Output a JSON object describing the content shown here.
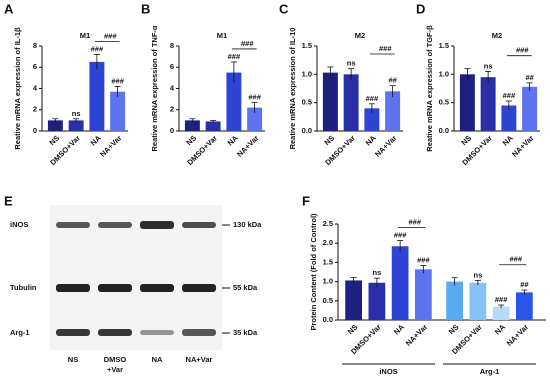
{
  "chart_data": [
    {
      "type": "bar",
      "panel": "A",
      "title": "M1",
      "y_label": "Reative mRNA expression of IL-1β",
      "categories": [
        "NS",
        "DMSO+Var",
        "NA",
        "NA+Var"
      ],
      "values": [
        1.0,
        1.0,
        6.5,
        3.7
      ],
      "errors": [
        0.15,
        0.15,
        0.7,
        0.5
      ],
      "colors": [
        "#1f1f80",
        "#2a2fa8",
        "#2d44d4",
        "#5e74ee"
      ],
      "annotations": [
        null,
        "ns",
        "###",
        "###"
      ],
      "bracket_label": "###",
      "ylim": [
        0,
        8
      ],
      "yticks": [
        0,
        2,
        4,
        6,
        8
      ]
    },
    {
      "type": "bar",
      "panel": "B",
      "title": "M1",
      "y_label": "Reative mRNA expression of TNF-α",
      "categories": [
        "NS",
        "DMSO+Var",
        "NA",
        "NA+Var"
      ],
      "values": [
        1.0,
        0.9,
        5.5,
        2.2
      ],
      "errors": [
        0.15,
        0.1,
        1.0,
        0.5
      ],
      "colors": [
        "#1f1f80",
        "#2a2fa8",
        "#2d44d4",
        "#5e74ee"
      ],
      "annotations": [
        null,
        null,
        "###",
        "###"
      ],
      "bracket_label": "###",
      "ylim": [
        0,
        8
      ],
      "yticks": [
        0,
        2,
        4,
        6,
        8
      ]
    },
    {
      "type": "bar",
      "panel": "C",
      "title": "M2",
      "y_label": "Reative mRNA expression of IL-10",
      "categories": [
        "NS",
        "DMSO+Var",
        "NA",
        "NA+Var"
      ],
      "values": [
        1.03,
        1.0,
        0.4,
        0.7
      ],
      "errors": [
        0.1,
        0.1,
        0.08,
        0.1
      ],
      "colors": [
        "#1f1f80",
        "#2a2fa8",
        "#2d44d4",
        "#5e74ee"
      ],
      "annotations": [
        null,
        "ns",
        "###",
        "##"
      ],
      "bracket_label": "###",
      "ylim": [
        0,
        1.5
      ],
      "yticks": [
        {
          "value": 0,
          "label": "0.0"
        },
        0.5,
        {
          "value": 1,
          "label": "1.0"
        },
        1.5
      ]
    },
    {
      "type": "bar",
      "panel": "D",
      "title": "M2",
      "y_label": "Reative mRNA expression of TGF-β",
      "categories": [
        "NS",
        "DMSO+Var",
        "NA",
        "NA+Var"
      ],
      "values": [
        1.0,
        0.95,
        0.45,
        0.78
      ],
      "errors": [
        0.1,
        0.1,
        0.08,
        0.07
      ],
      "colors": [
        "#1f1f80",
        "#2a2fa8",
        "#2d44d4",
        "#5e74ee"
      ],
      "annotations": [
        null,
        "ns",
        "###",
        "##"
      ],
      "bracket_label": "###",
      "ylim": [
        0,
        1.5
      ],
      "yticks": [
        {
          "value": 0,
          "label": "0.0"
        },
        0.5,
        {
          "value": 1,
          "label": "1.0"
        },
        1.5
      ]
    },
    {
      "type": "grouped-bar",
      "panel": "F",
      "y_label": "Protein Content (Fold of Control)",
      "categories": [
        "NS",
        "DMSO+Var",
        "NA",
        "NA+Var"
      ],
      "series": [
        {
          "name": "iNOS",
          "values": [
            1.03,
            0.97,
            1.92,
            1.32
          ],
          "errors": [
            0.08,
            0.12,
            0.15,
            0.1
          ],
          "colors": [
            "#1f1f80",
            "#2a2fa8",
            "#2d44d4",
            "#5e74ee"
          ],
          "annotations": [
            null,
            "ns",
            "###",
            "###"
          ],
          "bracket_label": "###"
        },
        {
          "name": "Arg-1",
          "values": [
            1.0,
            0.97,
            0.35,
            0.72
          ],
          "errors": [
            0.1,
            0.06,
            0.04,
            0.06
          ],
          "colors": [
            "#5aaaf0",
            "#86c2f5",
            "#b5dafa",
            "#2a55e8"
          ],
          "annotations": [
            null,
            "ns",
            "###",
            "##"
          ],
          "bracket_label": "###"
        }
      ],
      "ylim": [
        0,
        2.5
      ],
      "yticks": [
        {
          "value": 0,
          "label": "0.0"
        },
        0.5,
        {
          "value": 1,
          "label": "1.0"
        },
        1.5,
        {
          "value": 2,
          "label": "2.0"
        },
        2.5
      ]
    }
  ],
  "blot": {
    "panel": "E",
    "rows": [
      {
        "protein": "iNOS",
        "size": "130 kDa"
      },
      {
        "protein": "Tubulin",
        "size": "55 kDa"
      },
      {
        "protein": "Arg-1",
        "size": "35 kDa"
      }
    ],
    "lanes": [
      [
        "NS"
      ],
      [
        "DMSO",
        "+Var"
      ],
      [
        "NA"
      ],
      [
        "NA+Var"
      ]
    ]
  }
}
